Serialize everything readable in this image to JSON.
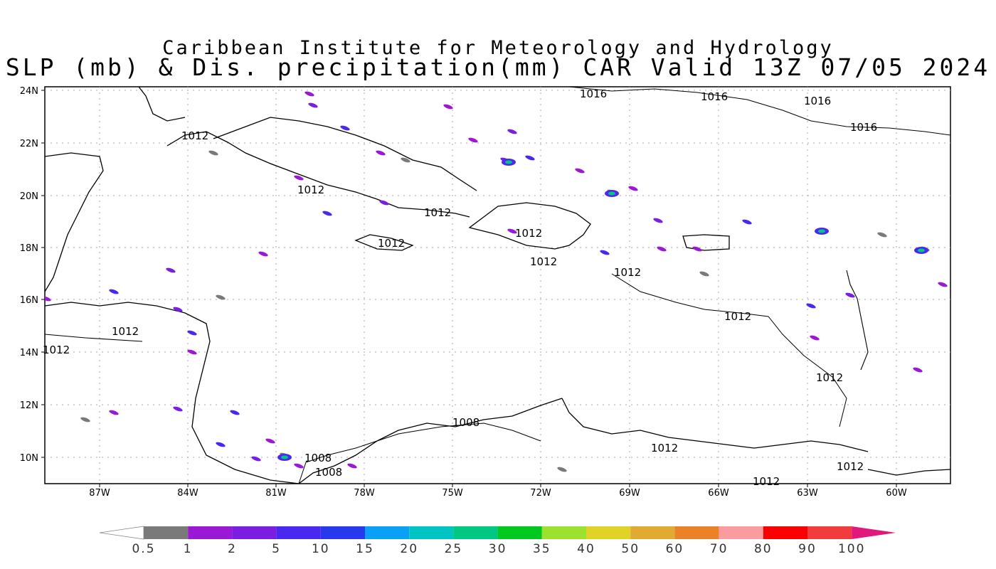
{
  "header": {
    "title": "Caribbean Institute for Meteorology and Hydrology",
    "subtitle": "SLP (mb) & Dis. precipitation(mm) CAR Valid 13Z 07/05 2024"
  },
  "map": {
    "x_ticks": [
      "87W",
      "84W",
      "81W",
      "78W",
      "75W",
      "72W",
      "69W",
      "66W",
      "63W",
      "60W"
    ],
    "y_ticks": [
      "24N",
      "22N",
      "20N",
      "18N",
      "16N",
      "14N",
      "12N",
      "10N"
    ],
    "isobar_labels": [
      "1016",
      "1016",
      "1016",
      "1016",
      "1012",
      "1012",
      "1012",
      "1012",
      "1012",
      "1012",
      "1012",
      "1012",
      "1012",
      "1012",
      "1012",
      "1012",
      "1012",
      "1012",
      "1008",
      "1008",
      "1008"
    ]
  },
  "colorbar": {
    "labels": [
      "0.5",
      "1",
      "2",
      "5",
      "10",
      "15",
      "20",
      "25",
      "30",
      "35",
      "40",
      "50",
      "60",
      "70",
      "80",
      "90",
      "100"
    ],
    "colors": [
      "#ffffff",
      "#7a7a7a",
      "#9a19d4",
      "#7a1ee0",
      "#4b28f0",
      "#2838ec",
      "#0aa0f5",
      "#00c3c3",
      "#00c882",
      "#00c81e",
      "#9be12d",
      "#e1d228",
      "#e1aa32",
      "#eb8228",
      "#fa9ba0",
      "#fa0000",
      "#f03c3c",
      "#e1197d"
    ]
  }
}
